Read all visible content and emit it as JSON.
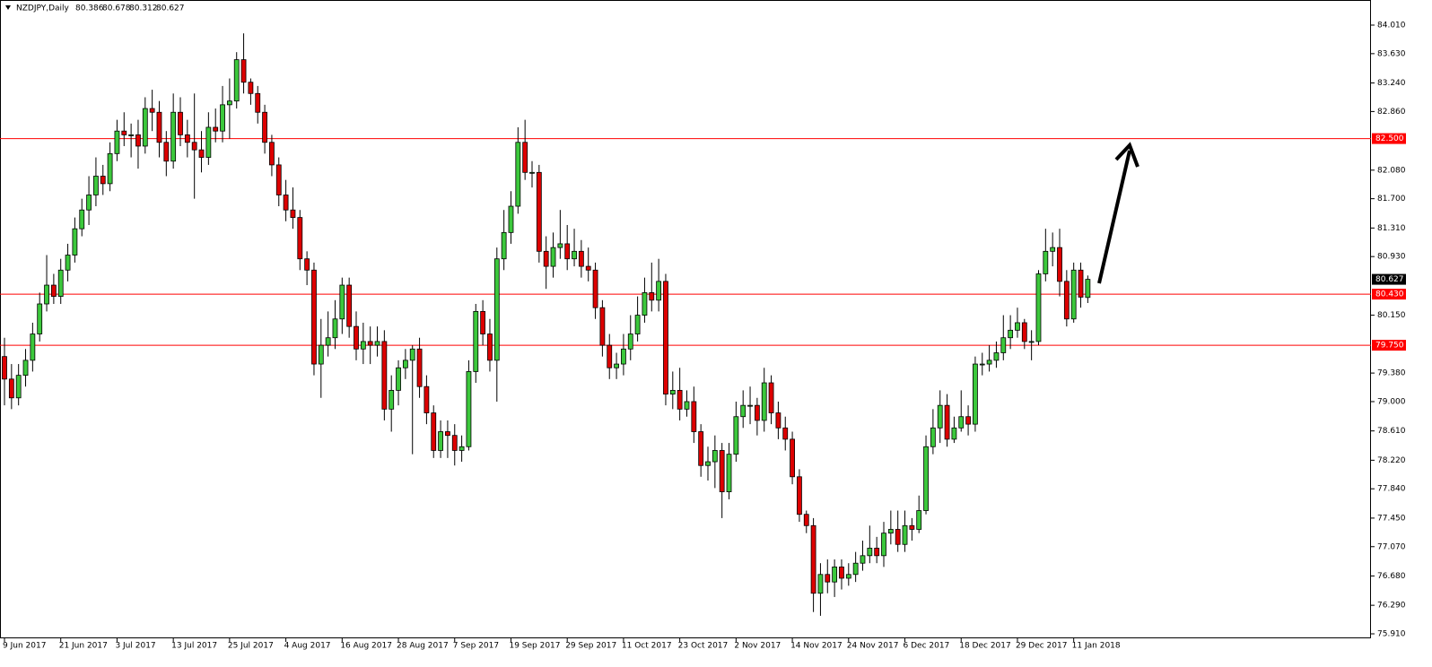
{
  "chart_data": {
    "type": "candlestick",
    "title": "NZDJPY,Daily",
    "ylim": [
      75.91,
      84.01
    ],
    "yticks": [
      {
        "value": 84.01,
        "label": "84.010"
      },
      {
        "value": 83.63,
        "label": "83.630"
      },
      {
        "value": 83.24,
        "label": "83.240"
      },
      {
        "value": 82.86,
        "label": "82.860"
      },
      {
        "value": 82.08,
        "label": "82.080"
      },
      {
        "value": 81.7,
        "label": "81.700"
      },
      {
        "value": 81.31,
        "label": "81.310"
      },
      {
        "value": 80.93,
        "label": "80.930"
      },
      {
        "value": 80.15,
        "label": "80.150"
      },
      {
        "value": 79.38,
        "label": "79.380"
      },
      {
        "value": 79,
        "label": "79.000"
      },
      {
        "value": 78.61,
        "label": "78.610"
      },
      {
        "value": 78.22,
        "label": "78.220"
      },
      {
        "value": 77.84,
        "label": "77.840"
      },
      {
        "value": 77.45,
        "label": "77.450"
      },
      {
        "value": 77.07,
        "label": "77.070"
      },
      {
        "value": 76.68,
        "label": "76.680"
      },
      {
        "value": 76.29,
        "label": "76.290"
      },
      {
        "value": 75.91,
        "label": "75.910"
      }
    ],
    "levels": [
      {
        "value": 82.5,
        "label": "82.500"
      },
      {
        "value": 80.43,
        "label": "80.430"
      },
      {
        "value": 79.75,
        "label": "79.750"
      }
    ],
    "level_color": "#ff0000",
    "up_color": "#3cc83c",
    "down_color": "#dd0000",
    "categories": [
      "9 Jun 2017",
      null,
      null,
      null,
      null,
      null,
      null,
      null,
      "21 Jun 2017",
      null,
      null,
      null,
      null,
      null,
      null,
      null,
      "3 Jul 2017",
      null,
      null,
      null,
      null,
      null,
      null,
      null,
      "13 Jul 2017",
      null,
      null,
      null,
      null,
      null,
      null,
      null,
      "25 Jul 2017",
      null,
      null,
      null,
      null,
      null,
      null,
      null,
      "4 Aug 2017",
      null,
      null,
      null,
      null,
      null,
      null,
      null,
      "16 Aug 2017",
      null,
      null,
      null,
      null,
      null,
      null,
      null,
      "28 Aug 2017",
      null,
      null,
      null,
      null,
      null,
      null,
      null,
      "7 Sep 2017",
      null,
      null,
      null,
      null,
      null,
      null,
      null,
      "19 Sep 2017",
      null,
      null,
      null,
      null,
      null,
      null,
      null,
      "29 Sep 2017",
      null,
      null,
      null,
      null,
      null,
      null,
      null,
      "11 Oct 2017",
      null,
      null,
      null,
      null,
      null,
      null,
      null,
      "23 Oct 2017",
      null,
      null,
      null,
      null,
      null,
      null,
      null,
      "2 Nov 2017",
      null,
      null,
      null,
      null,
      null,
      null,
      null,
      "14 Nov 2017",
      null,
      null,
      null,
      null,
      null,
      null,
      null,
      "24 Nov 2017",
      null,
      null,
      null,
      null,
      null,
      null,
      null,
      "6 Dec 2017",
      null,
      null,
      null,
      null,
      null,
      null,
      null,
      "18 Dec 2017",
      null,
      null,
      null,
      null,
      null,
      null,
      null,
      "29 Dec 2017",
      null,
      null,
      null,
      null,
      null,
      null,
      null,
      "11 Jan 2018",
      null,
      null
    ],
    "ohlc": [
      [
        79.6,
        79.85,
        78.95,
        79.3
      ],
      [
        79.3,
        79.5,
        78.9,
        79.05
      ],
      [
        79.05,
        79.5,
        78.95,
        79.35
      ],
      [
        79.35,
        79.7,
        79.2,
        79.55
      ],
      [
        79.55,
        80.05,
        79.4,
        79.9
      ],
      [
        79.9,
        80.45,
        79.8,
        80.3
      ],
      [
        80.3,
        80.95,
        80.2,
        80.55
      ],
      [
        80.55,
        80.7,
        80.3,
        80.4
      ],
      [
        80.4,
        80.9,
        80.3,
        80.75
      ],
      [
        80.75,
        81.1,
        80.6,
        80.95
      ],
      [
        80.95,
        81.45,
        80.85,
        81.3
      ],
      [
        81.3,
        81.7,
        81.2,
        81.55
      ],
      [
        81.55,
        82.0,
        81.35,
        81.75
      ],
      [
        81.75,
        82.25,
        81.6,
        82.0
      ],
      [
        82.0,
        82.15,
        81.75,
        81.9
      ],
      [
        81.9,
        82.45,
        81.8,
        82.3
      ],
      [
        82.3,
        82.75,
        82.2,
        82.6
      ],
      [
        82.6,
        82.85,
        82.4,
        82.55
      ],
      [
        82.55,
        82.7,
        82.25,
        82.55
      ],
      [
        82.55,
        82.75,
        82.1,
        82.4
      ],
      [
        82.4,
        83.05,
        82.3,
        82.9
      ],
      [
        82.9,
        83.15,
        82.6,
        82.85
      ],
      [
        82.85,
        83.0,
        82.25,
        82.45
      ],
      [
        82.45,
        82.6,
        82.0,
        82.2
      ],
      [
        82.2,
        83.1,
        82.1,
        82.85
      ],
      [
        82.85,
        83.05,
        82.4,
        82.55
      ],
      [
        82.55,
        82.75,
        82.25,
        82.45
      ],
      [
        82.45,
        83.1,
        81.7,
        82.35
      ],
      [
        82.35,
        82.6,
        82.05,
        82.25
      ],
      [
        82.25,
        82.85,
        82.15,
        82.65
      ],
      [
        82.65,
        82.9,
        82.45,
        82.6
      ],
      [
        82.6,
        83.2,
        82.45,
        82.95
      ],
      [
        82.95,
        83.3,
        82.5,
        83.0
      ],
      [
        83.0,
        83.65,
        82.9,
        83.55
      ],
      [
        83.55,
        83.9,
        83.1,
        83.25
      ],
      [
        83.25,
        83.3,
        82.95,
        83.1
      ],
      [
        83.1,
        83.2,
        82.7,
        82.85
      ],
      [
        82.85,
        82.95,
        82.3,
        82.45
      ],
      [
        82.45,
        82.55,
        82.0,
        82.15
      ],
      [
        82.15,
        82.25,
        81.6,
        81.75
      ],
      [
        81.75,
        81.95,
        81.4,
        81.55
      ],
      [
        81.55,
        81.85,
        81.3,
        81.45
      ],
      [
        81.45,
        81.55,
        80.75,
        80.9
      ],
      [
        80.9,
        81.0,
        80.55,
        80.75
      ],
      [
        80.75,
        80.85,
        79.35,
        79.5
      ],
      [
        79.5,
        80.1,
        79.05,
        79.75
      ],
      [
        79.75,
        80.2,
        79.6,
        79.85
      ],
      [
        79.85,
        80.35,
        79.7,
        80.1
      ],
      [
        80.1,
        80.65,
        79.9,
        80.55
      ],
      [
        80.55,
        80.65,
        79.85,
        80.0
      ],
      [
        80.0,
        80.2,
        79.55,
        79.7
      ],
      [
        79.7,
        80.05,
        79.5,
        79.8
      ],
      [
        79.8,
        80.0,
        79.5,
        79.75
      ],
      [
        79.75,
        80.0,
        79.6,
        79.8
      ],
      [
        79.8,
        79.95,
        78.75,
        78.9
      ],
      [
        78.9,
        79.35,
        78.6,
        79.15
      ],
      [
        79.15,
        79.55,
        78.95,
        79.45
      ],
      [
        79.45,
        79.7,
        79.3,
        79.55
      ],
      [
        79.55,
        79.75,
        78.3,
        79.7
      ],
      [
        79.7,
        79.85,
        79.05,
        79.2
      ],
      [
        79.2,
        79.35,
        78.7,
        78.85
      ],
      [
        78.85,
        78.95,
        78.25,
        78.35
      ],
      [
        78.35,
        78.75,
        78.25,
        78.6
      ],
      [
        78.6,
        78.75,
        78.25,
        78.55
      ],
      [
        78.55,
        78.7,
        78.15,
        78.35
      ],
      [
        78.35,
        78.55,
        78.2,
        78.4
      ],
      [
        78.4,
        79.55,
        78.35,
        79.4
      ],
      [
        79.4,
        80.3,
        79.25,
        80.2
      ],
      [
        80.2,
        80.35,
        79.75,
        79.9
      ],
      [
        79.9,
        80.1,
        79.4,
        79.55
      ],
      [
        79.55,
        81.05,
        79.0,
        80.9
      ],
      [
        80.9,
        81.55,
        80.75,
        81.25
      ],
      [
        81.25,
        81.8,
        81.1,
        81.6
      ],
      [
        81.6,
        82.65,
        81.5,
        82.45
      ],
      [
        82.45,
        82.75,
        81.95,
        82.05
      ],
      [
        82.05,
        82.2,
        81.85,
        82.05
      ],
      [
        82.05,
        82.15,
        80.85,
        81.0
      ],
      [
        81.0,
        81.2,
        80.5,
        80.8
      ],
      [
        80.8,
        81.25,
        80.65,
        81.05
      ],
      [
        81.05,
        81.55,
        80.9,
        81.1
      ],
      [
        81.1,
        81.35,
        80.75,
        80.9
      ],
      [
        80.9,
        81.3,
        80.8,
        81.0
      ],
      [
        81.0,
        81.15,
        80.65,
        80.8
      ],
      [
        80.8,
        81.05,
        80.6,
        80.75
      ],
      [
        80.75,
        80.85,
        80.1,
        80.25
      ],
      [
        80.25,
        80.35,
        79.6,
        79.75
      ],
      [
        79.75,
        79.9,
        79.3,
        79.45
      ],
      [
        79.45,
        79.65,
        79.3,
        79.5
      ],
      [
        79.5,
        79.9,
        79.35,
        79.7
      ],
      [
        79.7,
        80.15,
        79.55,
        79.9
      ],
      [
        79.9,
        80.4,
        79.8,
        80.15
      ],
      [
        80.15,
        80.65,
        80.05,
        80.45
      ],
      [
        80.45,
        80.85,
        80.2,
        80.35
      ],
      [
        80.35,
        80.9,
        80.2,
        80.6
      ],
      [
        80.6,
        80.7,
        78.95,
        79.1
      ],
      [
        79.1,
        79.4,
        78.9,
        79.15
      ],
      [
        79.15,
        79.45,
        78.75,
        78.9
      ],
      [
        78.9,
        79.15,
        78.8,
        79.0
      ],
      [
        79.0,
        79.2,
        78.45,
        78.6
      ],
      [
        78.6,
        78.7,
        78.0,
        78.15
      ],
      [
        78.15,
        78.4,
        77.95,
        78.2
      ],
      [
        78.2,
        78.55,
        77.85,
        78.35
      ],
      [
        78.35,
        78.45,
        77.45,
        77.8
      ],
      [
        77.8,
        78.45,
        77.7,
        78.3
      ],
      [
        78.3,
        79.0,
        78.2,
        78.8
      ],
      [
        78.8,
        79.15,
        78.65,
        78.95
      ],
      [
        78.95,
        79.2,
        78.7,
        78.95
      ],
      [
        78.95,
        79.05,
        78.55,
        78.75
      ],
      [
        78.75,
        79.45,
        78.6,
        79.25
      ],
      [
        79.25,
        79.35,
        78.7,
        78.85
      ],
      [
        78.85,
        79.0,
        78.5,
        78.65
      ],
      [
        78.65,
        78.8,
        78.35,
        78.5
      ],
      [
        78.5,
        78.6,
        77.9,
        78.0
      ],
      [
        78.0,
        78.1,
        77.4,
        77.5
      ],
      [
        77.5,
        77.55,
        77.25,
        77.35
      ],
      [
        77.35,
        77.45,
        76.2,
        76.45
      ],
      [
        76.45,
        76.85,
        76.15,
        76.7
      ],
      [
        76.7,
        76.9,
        76.45,
        76.6
      ],
      [
        76.6,
        76.9,
        76.4,
        76.8
      ],
      [
        76.8,
        76.9,
        76.5,
        76.65
      ],
      [
        76.65,
        76.85,
        76.55,
        76.7
      ],
      [
        76.7,
        77.0,
        76.6,
        76.85
      ],
      [
        76.85,
        77.15,
        76.75,
        76.95
      ],
      [
        76.95,
        77.35,
        76.85,
        77.05
      ],
      [
        77.05,
        77.2,
        76.85,
        76.95
      ],
      [
        76.95,
        77.4,
        76.8,
        77.25
      ],
      [
        77.25,
        77.55,
        77.1,
        77.3
      ],
      [
        77.3,
        77.55,
        77.0,
        77.1
      ],
      [
        77.1,
        77.55,
        77.0,
        77.35
      ],
      [
        77.35,
        77.45,
        77.15,
        77.3
      ],
      [
        77.3,
        77.75,
        77.25,
        77.55
      ],
      [
        77.55,
        78.55,
        77.5,
        78.4
      ],
      [
        78.4,
        78.9,
        78.3,
        78.65
      ],
      [
        78.65,
        79.15,
        78.45,
        78.95
      ],
      [
        78.95,
        79.1,
        78.4,
        78.5
      ],
      [
        78.5,
        78.8,
        78.45,
        78.65
      ],
      [
        78.65,
        79.15,
        78.6,
        78.8
      ],
      [
        78.8,
        78.95,
        78.55,
        78.7
      ],
      [
        78.7,
        79.6,
        78.6,
        79.5
      ],
      [
        79.5,
        79.65,
        79.35,
        79.5
      ],
      [
        79.5,
        79.75,
        79.4,
        79.55
      ],
      [
        79.55,
        79.8,
        79.45,
        79.65
      ],
      [
        79.65,
        80.15,
        79.55,
        79.85
      ],
      [
        79.85,
        80.15,
        79.7,
        79.95
      ],
      [
        79.95,
        80.25,
        79.85,
        80.05
      ],
      [
        80.05,
        80.1,
        79.7,
        79.8
      ],
      [
        79.8,
        79.95,
        79.55,
        79.8
      ],
      [
        79.8,
        80.75,
        79.75,
        80.7
      ],
      [
        80.7,
        81.3,
        80.6,
        81.0
      ],
      [
        81.0,
        81.25,
        80.8,
        81.05
      ],
      [
        81.05,
        81.3,
        80.4,
        80.6
      ],
      [
        80.6,
        80.75,
        80.0,
        80.1
      ],
      [
        80.1,
        80.85,
        80.05,
        80.75
      ],
      [
        80.75,
        80.85,
        80.25,
        80.39
      ],
      [
        80.386,
        80.678,
        80.312,
        80.627
      ]
    ]
  }
}
